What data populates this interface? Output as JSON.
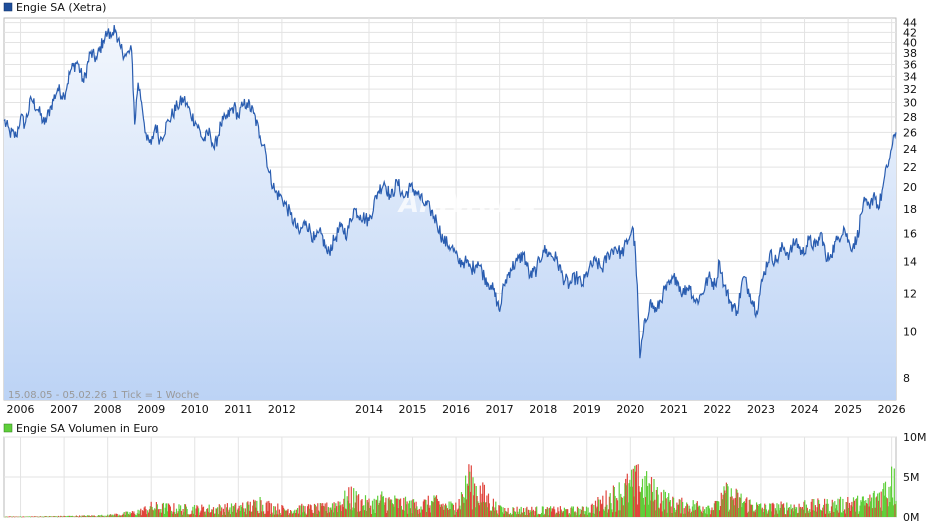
{
  "price_panel": {
    "legend_label": "Engie SA (Xetra)",
    "date_range": "15.08.05 - 05.02.26",
    "tick_info": "1 Tick = 1 Woche",
    "watermark": "ARIVA.DE"
  },
  "volume_panel": {
    "legend_label": "Engie SA Volumen in Euro"
  },
  "chart_data": [
    {
      "type": "area",
      "title": "Engie SA (Xetra)",
      "yscale": "log",
      "ylim": [
        7.2,
        45
      ],
      "y_ticks": [
        8,
        10,
        12,
        14,
        16,
        18,
        20,
        22,
        24,
        26,
        28,
        30,
        32,
        34,
        36,
        38,
        40,
        42,
        44
      ],
      "x_ticks": [
        2006,
        2007,
        2008,
        2009,
        2010,
        2011,
        2012,
        2014,
        2015,
        2016,
        2017,
        2018,
        2019,
        2020,
        2021,
        2022,
        2023,
        2024,
        2025,
        2026
      ],
      "xlim": [
        2005.62,
        2026.1
      ],
      "grid": true,
      "colors": {
        "line": "#2a5db0",
        "fill_top": "#f3f7fd",
        "fill_bottom": "#bcd3f5",
        "legend": "#1f4e9a"
      },
      "series": [
        {
          "name": "Engie SA (Xetra)",
          "x": [
            2005.62,
            2005.75,
            2005.9,
            2006.0,
            2006.1,
            2006.25,
            2006.4,
            2006.55,
            2006.7,
            2006.85,
            2007.0,
            2007.15,
            2007.3,
            2007.45,
            2007.6,
            2007.75,
            2007.9,
            2008.0,
            2008.08,
            2008.15,
            2008.22,
            2008.3,
            2008.42,
            2008.55,
            2008.62,
            2008.7,
            2008.78,
            2008.9,
            2009.0,
            2009.1,
            2009.2,
            2009.4,
            2009.6,
            2009.75,
            2009.9,
            2010.05,
            2010.2,
            2010.35,
            2010.45,
            2010.6,
            2010.75,
            2010.9,
            2011.0,
            2011.1,
            2011.2,
            2011.35,
            2011.5,
            2011.6,
            2011.7,
            2011.85,
            2012.0,
            2012.2,
            2012.4,
            2012.55,
            2012.75,
            2012.9,
            2013.05,
            2013.2,
            2013.35,
            2013.5,
            2013.65,
            2013.8,
            2014.0,
            2014.2,
            2014.35,
            2014.5,
            2014.65,
            2014.8,
            2014.95,
            2015.1,
            2015.25,
            2015.4,
            2015.55,
            2015.7,
            2015.9,
            2016.05,
            2016.2,
            2016.35,
            2016.5,
            2016.65,
            2016.8,
            2016.95,
            2017.0,
            2017.1,
            2017.25,
            2017.4,
            2017.55,
            2017.7,
            2017.85,
            2018.0,
            2018.15,
            2018.3,
            2018.45,
            2018.6,
            2018.75,
            2018.9,
            2019.05,
            2019.2,
            2019.35,
            2019.5,
            2019.65,
            2019.8,
            2019.95,
            2020.05,
            2020.12,
            2020.18,
            2020.22,
            2020.3,
            2020.45,
            2020.6,
            2020.75,
            2020.9,
            2021.05,
            2021.2,
            2021.35,
            2021.5,
            2021.65,
            2021.8,
            2021.95,
            2022.05,
            2022.15,
            2022.3,
            2022.45,
            2022.6,
            2022.75,
            2022.9,
            2023.05,
            2023.2,
            2023.35,
            2023.5,
            2023.65,
            2023.8,
            2023.95,
            2024.1,
            2024.25,
            2024.4,
            2024.5,
            2024.6,
            2024.75,
            2024.9,
            2025.05,
            2025.2,
            2025.35,
            2025.5,
            2025.6,
            2025.7,
            2025.8,
            2025.9,
            2026.0,
            2026.1
          ],
          "values": [
            27.5,
            26.0,
            25.5,
            28.0,
            27.0,
            30.5,
            29.0,
            27.0,
            29.5,
            32.0,
            31.0,
            35.0,
            36.5,
            33.0,
            38.0,
            37.0,
            40.5,
            42.0,
            41.0,
            43.5,
            40.0,
            39.0,
            37.5,
            38.5,
            27.0,
            33.0,
            30.0,
            25.0,
            24.5,
            27.0,
            25.0,
            27.5,
            29.5,
            30.5,
            28.5,
            27.0,
            25.0,
            26.0,
            24.0,
            27.0,
            28.0,
            29.5,
            28.0,
            29.5,
            30.0,
            28.5,
            25.5,
            24.5,
            21.5,
            19.5,
            19.0,
            17.5,
            16.0,
            17.0,
            15.5,
            16.0,
            14.5,
            15.5,
            16.5,
            16.0,
            18.0,
            17.5,
            17.0,
            19.5,
            20.5,
            19.0,
            20.5,
            19.0,
            20.0,
            19.5,
            18.5,
            18.0,
            17.0,
            15.5,
            15.0,
            14.0,
            14.0,
            13.5,
            14.0,
            13.0,
            12.5,
            11.5,
            11.0,
            12.5,
            13.5,
            14.0,
            14.5,
            13.0,
            13.5,
            14.8,
            14.5,
            14.2,
            13.0,
            12.5,
            13.0,
            12.5,
            13.5,
            14.0,
            13.5,
            14.5,
            15.0,
            14.5,
            15.5,
            16.5,
            14.5,
            11.0,
            8.8,
            10.0,
            11.5,
            11.0,
            12.0,
            12.5,
            13.0,
            12.0,
            12.5,
            11.5,
            12.0,
            13.0,
            12.5,
            14.0,
            12.5,
            11.5,
            11.0,
            13.0,
            12.0,
            11.0,
            13.0,
            14.5,
            14.0,
            15.0,
            14.5,
            15.5,
            14.5,
            15.5,
            15.0,
            16.0,
            14.0,
            14.5,
            15.5,
            16.5,
            15.0,
            15.5,
            18.5,
            18.0,
            19.5,
            18.0,
            20.0,
            22.0,
            24.0,
            26.0
          ]
        }
      ]
    },
    {
      "type": "bar",
      "title": "Engie SA Volumen in Euro",
      "ylim": [
        0,
        10000000
      ],
      "y_ticks": [
        "0M",
        "5M",
        "10M"
      ],
      "grid": true,
      "colors": {
        "up": "#5fcf3a",
        "down": "#e0453c",
        "legend": "#5fcf3a"
      },
      "series": [
        {
          "name": "Engie SA Volumen in Euro",
          "x": [
            2006.0,
            2007.0,
            2008.0,
            2008.7,
            2009.0,
            2010.0,
            2011.1,
            2011.5,
            2012.0,
            2013.0,
            2013.6,
            2014.0,
            2014.3,
            2015.0,
            2015.5,
            2016.0,
            2016.3,
            2017.0,
            2018.0,
            2019.0,
            2020.18,
            2021.0,
            2022.0,
            2022.2,
            2023.0,
            2024.0,
            2025.0,
            2025.5,
            2026.0
          ],
          "values": [
            80000,
            150000,
            300000,
            900000,
            1900000,
            1500000,
            1800000,
            2500000,
            1500000,
            1700000,
            3800000,
            2300000,
            3200000,
            2200000,
            2700000,
            1800000,
            6600000,
            1400000,
            1300000,
            1300000,
            6600000,
            2400000,
            2000000,
            4300000,
            1700000,
            2100000,
            2500000,
            2800000,
            6300000
          ]
        }
      ]
    }
  ]
}
